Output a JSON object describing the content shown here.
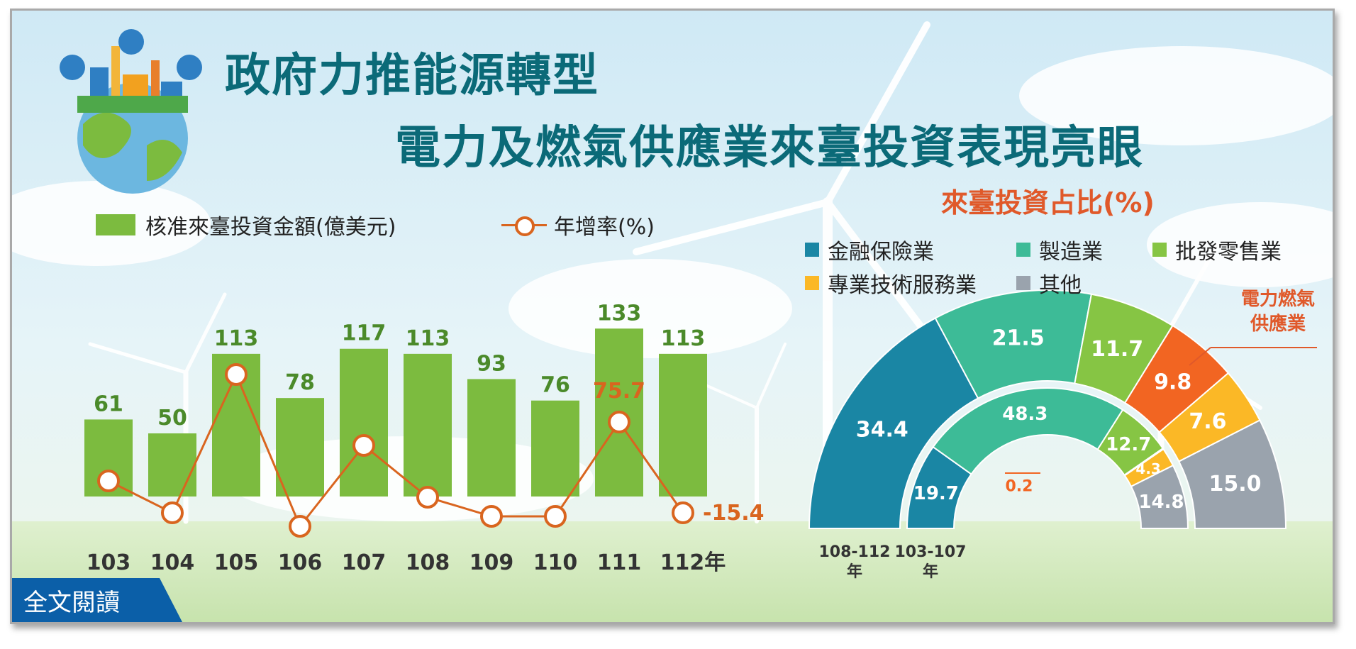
{
  "title": {
    "line1": "政府力推能源轉型",
    "line2": "電力及燃氣供應業來臺投資表現亮眼"
  },
  "read_more_label": "全文閱讀",
  "colors": {
    "bar": "#7cbb3f",
    "line": "#d9651f",
    "title": "#0b6a78",
    "accent": "#e0592a",
    "finance": "#1a86a4",
    "manufacturing": "#3dbb97",
    "wholesale": "#86c544",
    "electricity": "#f26522",
    "professional": "#fbb826",
    "other": "#9aa3ad"
  },
  "chart_data": [
    {
      "type": "bar",
      "legend": {
        "bar_label": "核准來臺投資金額(億美元)",
        "line_label": "年增率(%)"
      },
      "categories": [
        "103",
        "104",
        "105",
        "106",
        "107",
        "108",
        "109",
        "110",
        "111",
        "112年"
      ],
      "series": [
        {
          "name": "核准來臺投資金額(億美元)",
          "type": "bar",
          "values": [
            61,
            50,
            113,
            78,
            117,
            113,
            93,
            76,
            133,
            113
          ]
        },
        {
          "name": "年增率(%)",
          "type": "line",
          "values": [
            null,
            null,
            null,
            null,
            null,
            null,
            null,
            null,
            75.7,
            -15.4
          ],
          "labels_shown": [
            "75.7",
            "-15.4"
          ]
        }
      ],
      "ylim": [
        0,
        140
      ]
    },
    {
      "type": "pie",
      "title": "來臺投資占比(%)",
      "legend": [
        "金融保險業",
        "製造業",
        "批發零售業",
        "專業技術服務業",
        "其他"
      ],
      "callout": "電力燃氣供應業",
      "rings": [
        {
          "name": "108-112年",
          "label_line1": "108-112",
          "label_line2": "年",
          "slices": [
            {
              "label": "金融保險業",
              "value": 34.4
            },
            {
              "label": "製造業",
              "value": 21.5
            },
            {
              "label": "批發零售業",
              "value": 11.7
            },
            {
              "label": "電力燃氣供應業",
              "value": 9.8
            },
            {
              "label": "專業技術服務業",
              "value": 7.6
            },
            {
              "label": "其他",
              "value": 15.0
            }
          ],
          "display": [
            "34.4",
            "21.5",
            "11.7",
            "9.8",
            "7.6",
            "15.0"
          ]
        },
        {
          "name": "103-107年",
          "label_line1": "103-107",
          "label_line2": "年",
          "slices": [
            {
              "label": "金融保險業",
              "value": 19.7
            },
            {
              "label": "製造業",
              "value": 48.3
            },
            {
              "label": "批發零售業",
              "value": 12.7
            },
            {
              "label": "電力燃氣供應業",
              "value": 0.2
            },
            {
              "label": "專業技術服務業",
              "value": 4.3
            },
            {
              "label": "其他",
              "value": 14.8
            }
          ],
          "display": [
            "19.7",
            "48.3",
            "12.7",
            "0.2",
            "4.3",
            "14.8"
          ]
        }
      ]
    }
  ]
}
